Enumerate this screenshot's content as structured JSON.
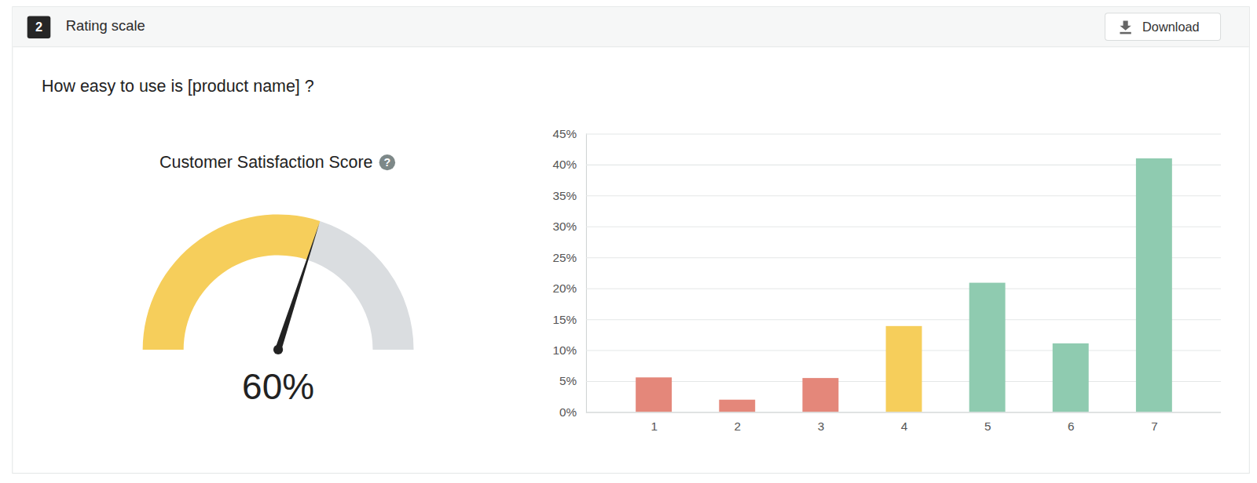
{
  "header": {
    "number": "2",
    "title": "Rating scale",
    "button": "Download"
  },
  "question": "How easy to use is [product name] ?",
  "chart_data": [
    {
      "type": "gauge",
      "title": "Customer Satisfaction Score",
      "help_icon": "?",
      "values": [
        60
      ],
      "value_labels": [
        "60%"
      ],
      "ylim": [
        0,
        100
      ],
      "colors": [
        "#f6ce5b",
        "#dadde0"
      ]
    },
    {
      "type": "bar",
      "categories": [
        "1",
        "2",
        "3",
        "4",
        "5",
        "6",
        "7"
      ],
      "values": [
        5.6,
        2,
        5.5,
        13.9,
        20.9,
        11.1,
        41
      ],
      "colors": [
        "#e4877a",
        "#e4877a",
        "#e4877a",
        "#f6ce5b",
        "#8fcbb0",
        "#8fcbb0",
        "#8fcbb0"
      ],
      "ylim": [
        0,
        45
      ],
      "yticks": [
        {
          "value": 0,
          "label": "0%"
        },
        {
          "value": 5,
          "label": "5%"
        },
        {
          "value": 10,
          "label": "10%"
        },
        {
          "value": 15,
          "label": "15%"
        },
        {
          "value": 20,
          "label": "20%"
        },
        {
          "value": 25,
          "label": "25%"
        },
        {
          "value": 30,
          "label": "30%"
        },
        {
          "value": 35,
          "label": "35%"
        },
        {
          "value": 40,
          "label": "40%"
        },
        {
          "value": 45,
          "label": "45%"
        }
      ],
      "grid": true
    }
  ]
}
